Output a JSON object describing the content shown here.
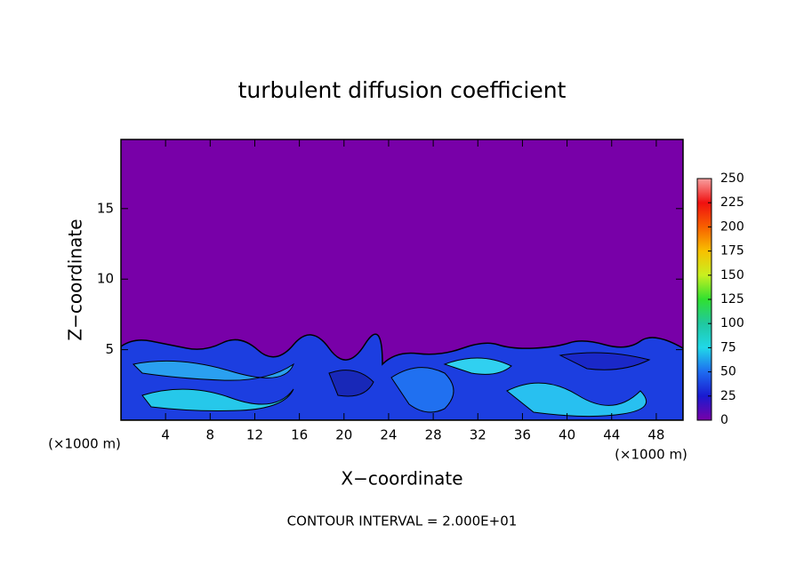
{
  "chart_data": {
    "type": "contour",
    "title": "turbulent diffusion coefficient",
    "x_label": "X−coordinate",
    "y_label": "Z−coordinate",
    "x_unit": "(×1000 m)",
    "y_unit": "(×1000 m)",
    "annotation": "CONTOUR INTERVAL = 2.000E+01",
    "xlim": [
      0,
      50.4
    ],
    "xticks": [
      4,
      8,
      12,
      16,
      20,
      24,
      28,
      32,
      36,
      40,
      44,
      48
    ],
    "ylim": [
      0,
      19.9
    ],
    "yticks": [
      5,
      10,
      15
    ],
    "colorbar": {
      "clim": [
        0,
        250
      ],
      "ticks": [
        0,
        25,
        50,
        75,
        100,
        125,
        150,
        175,
        200,
        225,
        250
      ],
      "colors": [
        "#7800a8",
        "#1a1ad0",
        "#1e6cf0",
        "#20d8e8",
        "#20c8a0",
        "#30e030",
        "#c8f020",
        "#f8c000",
        "#f86000",
        "#f01010",
        "#f8a0a0"
      ]
    }
  }
}
